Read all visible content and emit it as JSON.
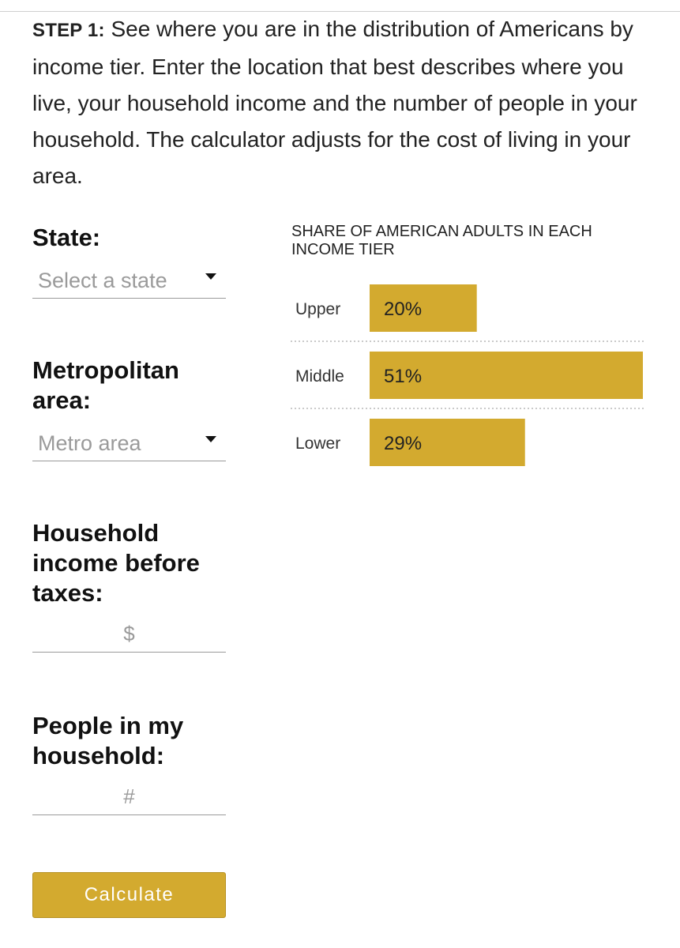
{
  "intro": {
    "step_label": "STEP 1:",
    "text": " See where you are in the distribution of Americans by income tier. Enter the location that best describes where you live, your household income and the number of people in your household. The calculator adjusts for the cost of living in your area."
  },
  "form": {
    "state": {
      "label": "State:",
      "placeholder": "Select a state"
    },
    "metro": {
      "label": "Metropolitan area:",
      "placeholder": "Metro area"
    },
    "income": {
      "label": "Household income before taxes:",
      "placeholder": "$"
    },
    "household": {
      "label": "People in my household:",
      "placeholder": "#"
    },
    "calculate_label": "Calculate"
  },
  "colors": {
    "accent": "#d3aa2f",
    "field_line": "#9a9a9a",
    "placeholder": "#9a9a9a"
  },
  "chart_data": {
    "type": "bar",
    "orientation": "horizontal",
    "title": "SHARE OF AMERICAN ADULTS IN EACH INCOME TIER",
    "categories": [
      "Upper",
      "Middle",
      "Lower"
    ],
    "values": [
      20,
      51,
      29
    ],
    "value_labels": [
      "20%",
      "51%",
      "29%"
    ],
    "unit": "%",
    "xlim": [
      0,
      51
    ],
    "bar_color": "#d3aa2f",
    "grid": false,
    "separators": "dotted"
  }
}
